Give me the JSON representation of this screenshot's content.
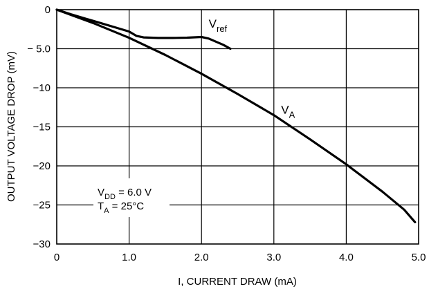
{
  "chart_data": {
    "type": "line",
    "xlabel": "I, CURRENT DRAW (mA)",
    "ylabel": "OUTPUT VOLTAGE DROP (mV)",
    "xlim": [
      0,
      5
    ],
    "ylim": [
      -30,
      0
    ],
    "grid": true,
    "x_ticks": [
      0,
      1,
      2,
      3,
      4,
      5
    ],
    "x_tick_labels": [
      "0",
      "1.0",
      "2.0",
      "3.0",
      "4.0",
      "5.0"
    ],
    "y_ticks": [
      0,
      -5,
      -10,
      -15,
      -20,
      -25,
      -30
    ],
    "y_tick_labels": [
      "0",
      "− 5.0",
      "−10",
      "−15",
      "−20",
      "−25",
      "−30"
    ],
    "series": [
      {
        "name": "Vref",
        "label_main": "V",
        "label_sub": "ref",
        "label_at": [
          2.1,
          -2.3
        ],
        "x": [
          0,
          0.2,
          0.4,
          0.6,
          0.8,
          1.0,
          1.1,
          1.2,
          1.4,
          1.6,
          1.8,
          2.0,
          2.1,
          2.2,
          2.3,
          2.4
        ],
        "y": [
          0,
          -0.6,
          -1.15,
          -1.7,
          -2.25,
          -2.8,
          -3.35,
          -3.55,
          -3.62,
          -3.62,
          -3.58,
          -3.5,
          -3.7,
          -4.1,
          -4.5,
          -5.0
        ]
      },
      {
        "name": "VA",
        "label_main": "V",
        "label_sub": "A",
        "label_at": [
          3.1,
          -13.3
        ],
        "x": [
          0,
          0.5,
          1.0,
          1.5,
          2.0,
          2.5,
          3.0,
          3.5,
          4.0,
          4.5,
          4.8,
          4.95
        ],
        "y": [
          0,
          -1.7,
          -3.6,
          -5.8,
          -8.2,
          -10.8,
          -13.5,
          -16.6,
          -19.8,
          -23.3,
          -25.6,
          -27.2
        ]
      }
    ]
  },
  "conditions": {
    "vdd_main": "V",
    "vdd_sub": "DD",
    "vdd_value": " = 6.0 V",
    "ta_main": "T",
    "ta_sub": "A",
    "ta_value": " = 25°C"
  }
}
